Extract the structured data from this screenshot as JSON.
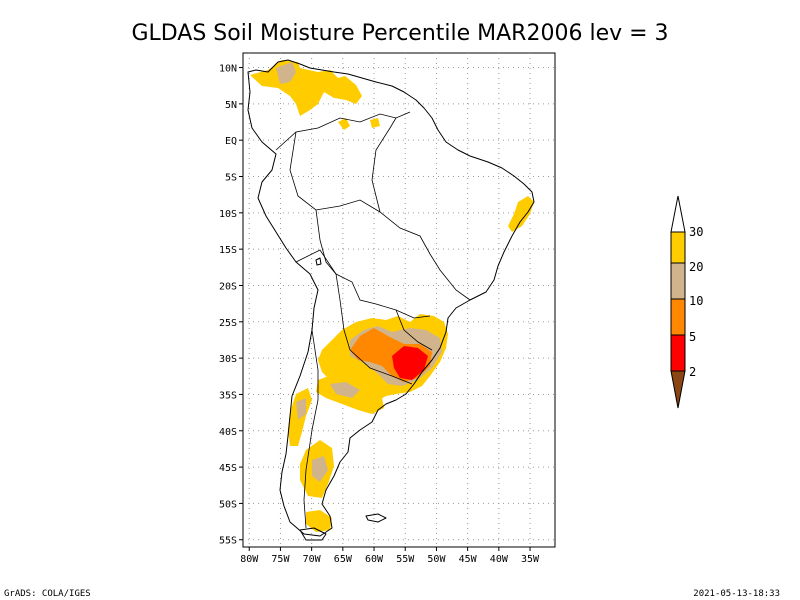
{
  "title": "GLDAS Soil Moisture Percentile MAR2006 lev = 3",
  "footer_left": "GrADS: COLA/IGES",
  "footer_right": "2021-05-13-18:33",
  "axes": {
    "lon_labels": [
      "80W",
      "75W",
      "70W",
      "65W",
      "60W",
      "55W",
      "50W",
      "45W",
      "40W",
      "35W"
    ],
    "lon_values": [
      -80,
      -75,
      -70,
      -65,
      -60,
      -55,
      -50,
      -45,
      -40,
      -35
    ],
    "lat_labels": [
      "10N",
      "5N",
      "EQ",
      "5S",
      "10S",
      "15S",
      "20S",
      "25S",
      "30S",
      "35S",
      "40S",
      "45S",
      "50S",
      "55S"
    ],
    "lat_values": [
      10,
      5,
      0,
      -5,
      -10,
      -15,
      -20,
      -25,
      -30,
      -35,
      -40,
      -45,
      -50,
      -55
    ],
    "lon_range": [
      -81,
      -31
    ],
    "lat_range": [
      -56,
      12
    ]
  },
  "colorbar": {
    "labels": [
      "30",
      "20",
      "10",
      "5",
      "2"
    ],
    "bins": [
      {
        "range": "> 30",
        "color": "#ffffff"
      },
      {
        "range": "20-30",
        "color": "#ffcc00"
      },
      {
        "range": "10-20",
        "color": "#d2b48c"
      },
      {
        "range": "5-10",
        "color": "#ff8800"
      },
      {
        "range": "2-5",
        "color": "#ff0000"
      },
      {
        "range": "< 2",
        "color": "#8b4513"
      }
    ]
  },
  "colors": {
    "yellow": "#ffcc00",
    "tan": "#d2b48c",
    "orange": "#ff8800",
    "red": "#ff0000",
    "brown": "#8b4513"
  }
}
